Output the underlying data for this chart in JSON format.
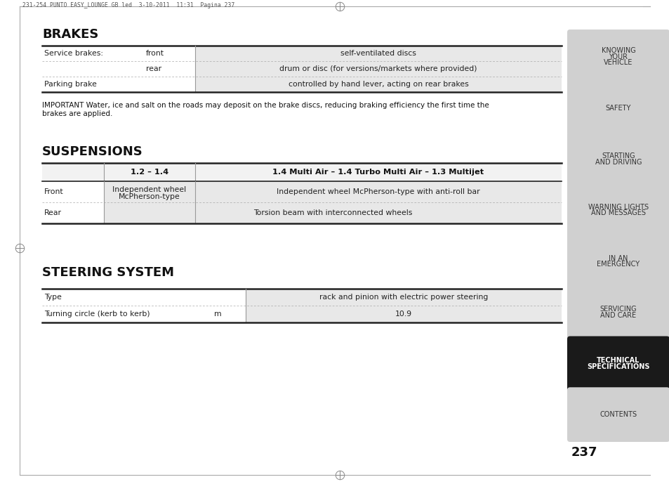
{
  "header_text": "231-254 PUNTO EASY_LOUNGE GB led  3-10-2011  11:31  Pagina 237",
  "bg_color": "#ffffff",
  "section1_title": "BRAKES",
  "section2_title": "SUSPENSIONS",
  "section3_title": "STEERING SYSTEM",
  "brakes_rows": [
    {
      "col1": "Service brakes:",
      "col2": "front",
      "col3": "self-ventilated discs"
    },
    {
      "col1": "",
      "col2": "rear",
      "col3": "drum or disc (for versions/markets where provided)"
    },
    {
      "col1": "Parking brake",
      "col2": "",
      "col3": "controlled by hand lever, acting on rear brakes"
    }
  ],
  "important_text": "IMPORTANT Water, ice and salt on the roads may deposit on the brake discs, reducing braking efficiency the first time the\nbrakes are applied.",
  "susp_header_col2": "1.2 – 1.4",
  "susp_header_col3": "1.4 Multi Air – 1.4 Turbo Multi Air – 1.3 Multijet",
  "susp_rows": [
    {
      "col1": "Front",
      "col2": "Independent wheel\nMcPherson-type",
      "col3": "Independent wheel McPherson-type with anti-roll bar"
    },
    {
      "col1": "Rear",
      "col2": "",
      "col3": "Torsion beam with interconnected wheels"
    }
  ],
  "steering_rows": [
    {
      "col1": "Type",
      "col2": "",
      "col3": "rack and pinion with electric power steering"
    },
    {
      "col1": "Turning circle (kerb to kerb)",
      "col2": "m",
      "col3": "10.9"
    }
  ],
  "nav_items": [
    {
      "text": "KNOWING\nYOUR\nVEHICLE",
      "active": false
    },
    {
      "text": "SAFETY",
      "active": false
    },
    {
      "text": "STARTING\nAND DRIVING",
      "active": false
    },
    {
      "text": "WARNING LIGHTS\nAND MESSAGES",
      "active": false
    },
    {
      "text": "IN AN\nEMERGENCY",
      "active": false
    },
    {
      "text": "SERVICING\nAND CARE",
      "active": false
    },
    {
      "text": "TECHNICAL\nSPECIFICATIONS",
      "active": true
    },
    {
      "text": "CONTENTS",
      "active": false
    }
  ],
  "page_number": "237",
  "nav_active_bg": "#1a1a1a",
  "nav_inactive_bg": "#d0d0d0",
  "nav_active_text": "#ffffff",
  "nav_inactive_text": "#333333",
  "table_shaded_bg": "#e8e8e8",
  "col_divider_color": "#999999",
  "row_divider_color": "#aaaaaa",
  "thick_line_color": "#222222",
  "border_color": "#aaaaaa"
}
